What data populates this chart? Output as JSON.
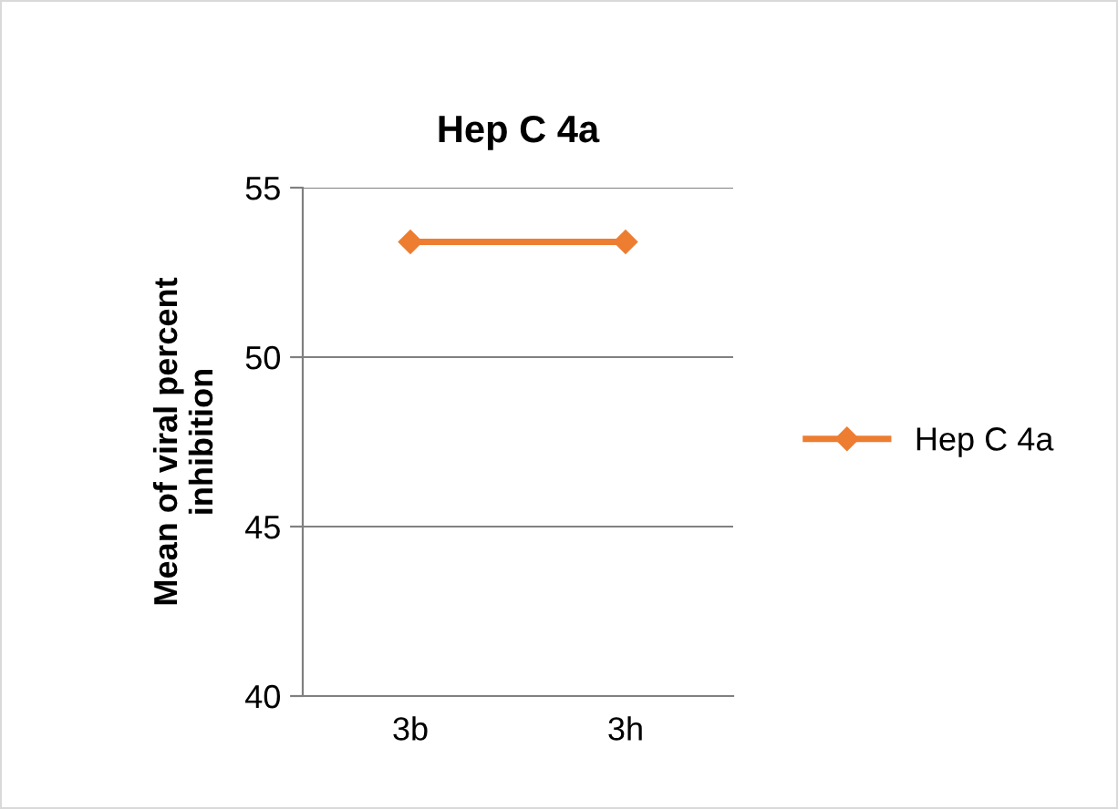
{
  "chart_data": {
    "type": "line",
    "title": "Hep C 4a",
    "ylabel": "Mean of viral percent\ninhibition",
    "categories": [
      "3b",
      "3h"
    ],
    "series": [
      {
        "name": "Hep C 4a",
        "color": "#ed7d31",
        "values": [
          53.4,
          53.4
        ]
      }
    ],
    "ylim": [
      40,
      55
    ],
    "yticks": [
      40,
      45,
      50,
      55
    ],
    "grid": "y",
    "legend": "right",
    "marker": "diamond",
    "line_style": "solid"
  }
}
